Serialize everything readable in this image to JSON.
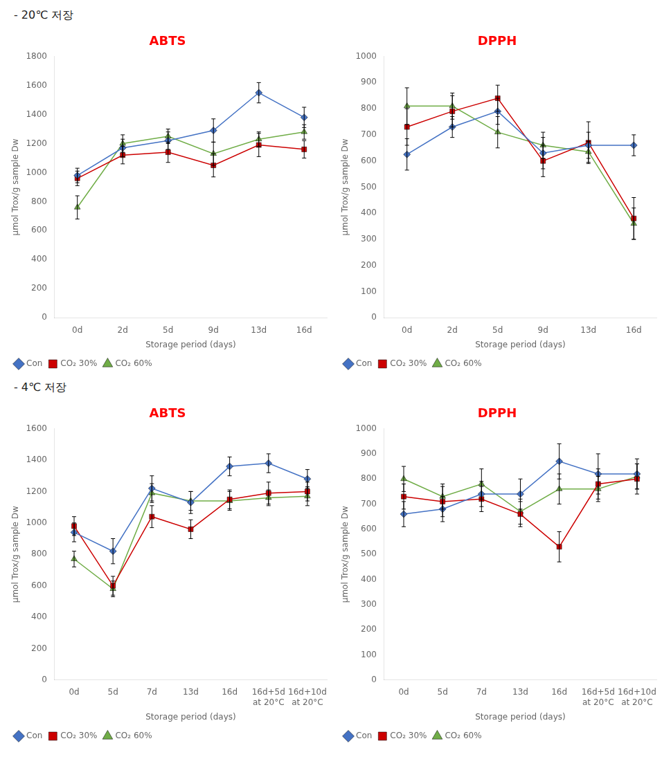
{
  "chart_data": [
    {
      "type": "line",
      "title": "ABTS",
      "subtitle": "- 20℃  저장",
      "x_label": "Storage period (days)",
      "y_label": "μmol Trox/g sample Dw",
      "categories": [
        "0d",
        "2d",
        "5d",
        "9d",
        "13d",
        "16d"
      ],
      "series": [
        {
          "name": "Con",
          "color": "#4472C4",
          "marker": "diamond",
          "values": [
            980,
            1170,
            1220,
            1290,
            1550,
            1380
          ],
          "errors": [
            50,
            60,
            60,
            80,
            70,
            70
          ]
        },
        {
          "name": "CO₂ 30%",
          "color": "#CC0000",
          "marker": "square",
          "values": [
            960,
            1120,
            1140,
            1050,
            1190,
            1160
          ],
          "errors": [
            50,
            60,
            70,
            80,
            80,
            60
          ]
        },
        {
          "name": "CO₂ 60%",
          "color": "#70AD47",
          "marker": "triangle",
          "values": [
            760,
            1200,
            1250,
            1130,
            1230,
            1280
          ],
          "errors": [
            80,
            60,
            50,
            80,
            50,
            50
          ]
        }
      ],
      "ylim": [
        0,
        1800
      ],
      "yticks": [
        0,
        200,
        400,
        600,
        800,
        1000,
        1200,
        1400,
        1600,
        1800
      ],
      "grid": false,
      "legend": "lower left"
    },
    {
      "type": "line",
      "title": "DPPH",
      "x_label": "Storage period (days)",
      "y_label": "μmol Trox/g sample Dw",
      "categories": [
        "0d",
        "2d",
        "5d",
        "9d",
        "13d",
        "16d"
      ],
      "series": [
        {
          "name": "Con",
          "color": "#4472C4",
          "marker": "diamond",
          "values": [
            625,
            730,
            790,
            630,
            660,
            660
          ],
          "errors": [
            60,
            40,
            50,
            60,
            50,
            40
          ]
        },
        {
          "name": "CO₂ 30%",
          "color": "#CC0000",
          "marker": "square",
          "values": [
            730,
            790,
            840,
            600,
            670,
            380
          ],
          "errors": [
            70,
            60,
            50,
            60,
            80,
            80
          ]
        },
        {
          "name": "CO₂ 60%",
          "color": "#70AD47",
          "marker": "triangle",
          "values": [
            810,
            810,
            710,
            660,
            635,
            360
          ],
          "errors": [
            70,
            50,
            60,
            50,
            40,
            60
          ]
        }
      ],
      "ylim": [
        0,
        1000
      ],
      "yticks": [
        0,
        100,
        200,
        300,
        400,
        500,
        600,
        700,
        800,
        900,
        1000
      ],
      "grid": false,
      "legend": "lower left"
    },
    {
      "type": "line",
      "title": "ABTS",
      "subtitle": "- 4℃  저장",
      "x_label": "Storage period (days)",
      "y_label": "μmol Trox/g sample Dw",
      "categories": [
        "0d",
        "5d",
        "7d",
        "13d",
        "16d",
        "16d+5d\nat 20°C",
        "16d+10d\nat 20°C"
      ],
      "series": [
        {
          "name": "Con",
          "color": "#4472C4",
          "marker": "diamond",
          "values": [
            940,
            820,
            1220,
            1130,
            1360,
            1380,
            1280
          ],
          "errors": [
            60,
            80,
            80,
            70,
            60,
            60,
            60
          ]
        },
        {
          "name": "CO₂ 30%",
          "color": "#CC0000",
          "marker": "square",
          "values": [
            980,
            600,
            1040,
            960,
            1150,
            1190,
            1200
          ],
          "errors": [
            60,
            60,
            70,
            60,
            60,
            70,
            60
          ]
        },
        {
          "name": "CO₂ 60%",
          "color": "#70AD47",
          "marker": "triangle",
          "values": [
            770,
            580,
            1190,
            1140,
            1140,
            1160,
            1170
          ],
          "errors": [
            50,
            50,
            60,
            60,
            60,
            50,
            60
          ]
        }
      ],
      "ylim": [
        0,
        1600
      ],
      "yticks": [
        0,
        200,
        400,
        600,
        800,
        1000,
        1200,
        1400,
        1600
      ],
      "grid": false,
      "legend": "lower left"
    },
    {
      "type": "line",
      "title": "DPPH",
      "x_label": "Storage period (days)",
      "y_label": "μmol Trox/g sample Dw",
      "categories": [
        "0d",
        "5d",
        "7d",
        "13d",
        "16d",
        "16d+5d\nat 20°C",
        "16d+10d\nat 20°C"
      ],
      "series": [
        {
          "name": "Con",
          "color": "#4472C4",
          "marker": "diamond",
          "values": [
            660,
            680,
            740,
            740,
            870,
            820,
            820
          ],
          "errors": [
            50,
            50,
            50,
            60,
            70,
            80,
            60
          ]
        },
        {
          "name": "CO₂ 30%",
          "color": "#CC0000",
          "marker": "square",
          "values": [
            730,
            710,
            720,
            660,
            530,
            780,
            800
          ],
          "errors": [
            50,
            60,
            50,
            50,
            60,
            60,
            60
          ]
        },
        {
          "name": "CO₂ 60%",
          "color": "#70AD47",
          "marker": "triangle",
          "values": [
            800,
            730,
            780,
            670,
            760,
            760,
            810
          ],
          "errors": [
            50,
            50,
            60,
            50,
            60,
            50,
            50
          ]
        }
      ],
      "ylim": [
        0,
        1000
      ],
      "yticks": [
        0,
        100,
        200,
        300,
        400,
        500,
        600,
        700,
        800,
        900,
        1000
      ],
      "grid": false,
      "legend": "lower left"
    }
  ]
}
